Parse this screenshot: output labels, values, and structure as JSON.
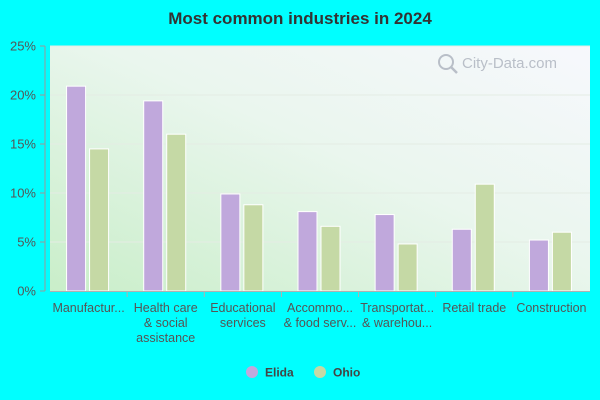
{
  "chart_data": {
    "type": "bar",
    "title": "Most common industries in 2024",
    "categories": [
      [
        "Manufactur..."
      ],
      [
        "Health care",
        "& social",
        "assistance"
      ],
      [
        "Educational",
        "services"
      ],
      [
        "Accommo...",
        "& food serv..."
      ],
      [
        "Transportat...",
        "& warehou..."
      ],
      [
        "Retail trade"
      ],
      [
        "Construction"
      ]
    ],
    "series": [
      {
        "name": "Elida",
        "color": "#c0a8dc",
        "values": [
          20.9,
          19.4,
          9.9,
          8.1,
          7.8,
          6.3,
          5.2
        ]
      },
      {
        "name": "Ohio",
        "color": "#c5d9a5",
        "values": [
          14.5,
          16.0,
          8.8,
          6.6,
          4.8,
          10.9,
          6.0
        ]
      }
    ],
    "ylim": [
      0,
      25
    ],
    "yticks": [
      0,
      5,
      10,
      15,
      20,
      25
    ],
    "ytick_suffix": "%",
    "grid": true,
    "legend_position": "bottom-center",
    "watermark": "City-Data.com"
  }
}
